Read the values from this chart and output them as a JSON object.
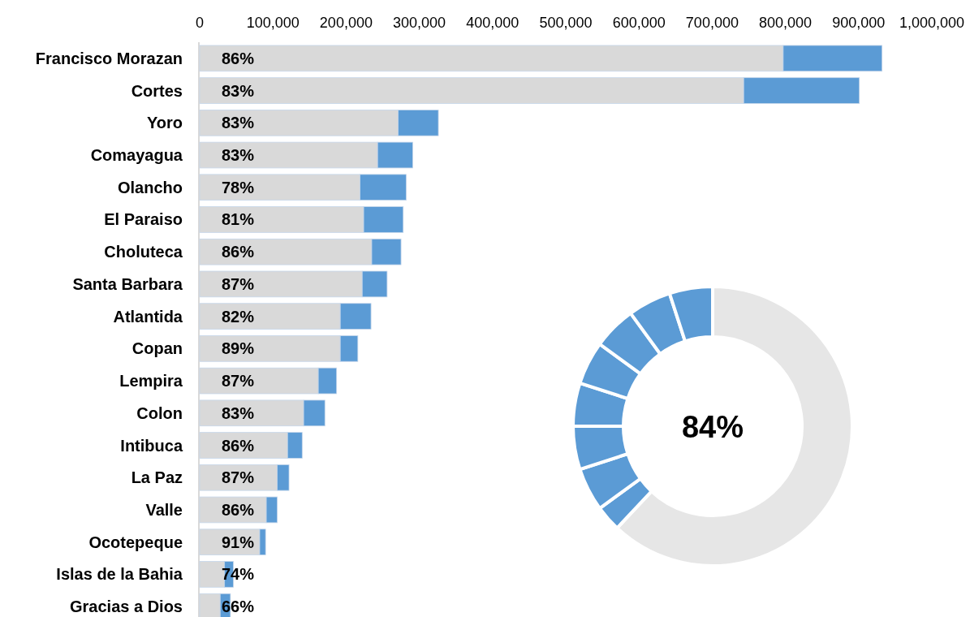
{
  "chart_data": [
    {
      "type": "bar",
      "orientation": "horizontal",
      "stacked": true,
      "categories": [
        "Francisco Morazan",
        "Cortes",
        "Yoro",
        "Comayagua",
        "Olancho",
        "El Paraiso",
        "Choluteca",
        "Santa Barbara",
        "Atlantida",
        "Copan",
        "Lempira",
        "Colon",
        "Intibuca",
        "La Paz",
        "Valle",
        "Ocotepeque",
        "Islas de la Bahia",
        "Gracias a Dios"
      ],
      "series": [
        {
          "color": "#d9d9d9",
          "values": [
            797000,
            743000,
            271000,
            243000,
            219000,
            224000,
            235000,
            222000,
            192000,
            192000,
            162000,
            142000,
            120000,
            106000,
            91000,
            82000,
            34000,
            28000
          ]
        },
        {
          "color": "#5b9bd5",
          "values": [
            135000,
            158000,
            55000,
            48000,
            63000,
            54000,
            40000,
            34000,
            42000,
            24000,
            25000,
            29000,
            20000,
            16000,
            15000,
            8000,
            12000,
            14000
          ]
        }
      ],
      "xlim": [
        0,
        1000000
      ],
      "xticks": [
        {
          "value": 0,
          "label": "0"
        },
        {
          "value": 100000,
          "label": "100,000"
        },
        {
          "value": 200000,
          "label": "200,000"
        },
        {
          "value": 300000,
          "label": "300,000"
        },
        {
          "value": 400000,
          "label": "400,000"
        },
        {
          "value": 500000,
          "label": "500,000"
        },
        {
          "value": 600000,
          "label": "600,000"
        },
        {
          "value": 700000,
          "label": "700,000"
        },
        {
          "value": 800000,
          "label": "800,000"
        },
        {
          "value": 900000,
          "label": "900,000"
        },
        {
          "value": 1000000,
          "label": "1,000,000"
        }
      ],
      "annotations": [
        "86%",
        "83%",
        "83%",
        "83%",
        "78%",
        "81%",
        "86%",
        "87%",
        "82%",
        "89%",
        "87%",
        "83%",
        "86%",
        "87%",
        "86%",
        "91%",
        "74%",
        "66%"
      ]
    },
    {
      "type": "donut",
      "categories": [
        null,
        null,
        null,
        null,
        null,
        null,
        null,
        null,
        null
      ],
      "values": [
        62,
        3,
        5,
        5,
        5,
        5,
        5,
        5,
        5
      ],
      "colors": [
        "#e6e6e6",
        "#5b9bd5",
        "#5b9bd5",
        "#5b9bd5",
        "#5b9bd5",
        "#5b9bd5",
        "#5b9bd5",
        "#5b9bd5",
        "#5b9bd5"
      ],
      "annotations": [
        "84%"
      ]
    }
  ]
}
